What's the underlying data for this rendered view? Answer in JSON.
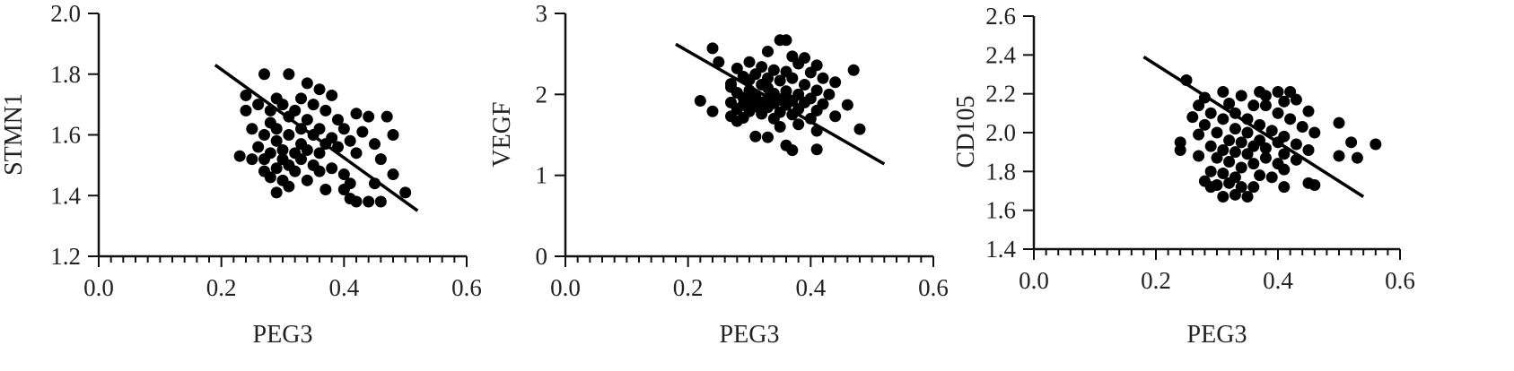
{
  "chart_data": [
    {
      "type": "scatter",
      "xlabel": "PEG3",
      "ylabel": "STMN1",
      "xlim": [
        0.0,
        0.6
      ],
      "ylim": [
        1.2,
        2.0
      ],
      "xticks": [
        0.0,
        0.2,
        0.4,
        0.6
      ],
      "xtick_labels": [
        "0.0",
        "0.2",
        "0.4",
        "0.6"
      ],
      "yticks": [
        1.2,
        1.4,
        1.6,
        1.8,
        2.0
      ],
      "ytick_labels": [
        "1.2",
        "1.4",
        "1.6",
        "1.8",
        "2.0"
      ],
      "grid": false,
      "regression_line": {
        "x": [
          0.19,
          0.52
        ],
        "y": [
          1.83,
          1.35
        ]
      },
      "points": [
        [
          0.27,
          1.8
        ],
        [
          0.31,
          1.8
        ],
        [
          0.34,
          1.77
        ],
        [
          0.36,
          1.75
        ],
        [
          0.38,
          1.73
        ],
        [
          0.24,
          1.73
        ],
        [
          0.29,
          1.72
        ],
        [
          0.33,
          1.72
        ],
        [
          0.26,
          1.7
        ],
        [
          0.3,
          1.7
        ],
        [
          0.35,
          1.7
        ],
        [
          0.24,
          1.68
        ],
        [
          0.28,
          1.68
        ],
        [
          0.32,
          1.68
        ],
        [
          0.37,
          1.68
        ],
        [
          0.42,
          1.67
        ],
        [
          0.44,
          1.66
        ],
        [
          0.47,
          1.66
        ],
        [
          0.31,
          1.66
        ],
        [
          0.34,
          1.65
        ],
        [
          0.39,
          1.65
        ],
        [
          0.28,
          1.64
        ],
        [
          0.25,
          1.62
        ],
        [
          0.29,
          1.62
        ],
        [
          0.33,
          1.62
        ],
        [
          0.36,
          1.62
        ],
        [
          0.4,
          1.62
        ],
        [
          0.43,
          1.61
        ],
        [
          0.48,
          1.6
        ],
        [
          0.27,
          1.6
        ],
        [
          0.31,
          1.6
        ],
        [
          0.35,
          1.6
        ],
        [
          0.38,
          1.59
        ],
        [
          0.41,
          1.58
        ],
        [
          0.29,
          1.58
        ],
        [
          0.33,
          1.57
        ],
        [
          0.37,
          1.57
        ],
        [
          0.45,
          1.57
        ],
        [
          0.26,
          1.56
        ],
        [
          0.39,
          1.56
        ],
        [
          0.3,
          1.55
        ],
        [
          0.34,
          1.55
        ],
        [
          0.28,
          1.54
        ],
        [
          0.32,
          1.54
        ],
        [
          0.36,
          1.54
        ],
        [
          0.42,
          1.54
        ],
        [
          0.23,
          1.53
        ],
        [
          0.25,
          1.52
        ],
        [
          0.27,
          1.52
        ],
        [
          0.3,
          1.52
        ],
        [
          0.33,
          1.52
        ],
        [
          0.46,
          1.52
        ],
        [
          0.31,
          1.5
        ],
        [
          0.35,
          1.5
        ],
        [
          0.38,
          1.49
        ],
        [
          0.29,
          1.49
        ],
        [
          0.27,
          1.48
        ],
        [
          0.32,
          1.48
        ],
        [
          0.36,
          1.48
        ],
        [
          0.4,
          1.47
        ],
        [
          0.28,
          1.46
        ],
        [
          0.48,
          1.47
        ],
        [
          0.3,
          1.45
        ],
        [
          0.34,
          1.45
        ],
        [
          0.41,
          1.44
        ],
        [
          0.45,
          1.44
        ],
        [
          0.31,
          1.43
        ],
        [
          0.37,
          1.42
        ],
        [
          0.4,
          1.42
        ],
        [
          0.29,
          1.41
        ],
        [
          0.5,
          1.41
        ],
        [
          0.41,
          1.39
        ],
        [
          0.42,
          1.38
        ],
        [
          0.44,
          1.38
        ],
        [
          0.46,
          1.38
        ]
      ]
    },
    {
      "type": "scatter",
      "xlabel": "PEG3",
      "ylabel": "VEGF",
      "xlim": [
        0.0,
        0.6
      ],
      "ylim": [
        0,
        3
      ],
      "xticks": [
        0.0,
        0.2,
        0.4,
        0.6
      ],
      "xtick_labels": [
        "0.0",
        "0.2",
        "0.4",
        "0.6"
      ],
      "yticks": [
        0,
        1,
        2,
        3
      ],
      "ytick_labels": [
        "0",
        "1",
        "2",
        "3"
      ],
      "grid": false,
      "regression_line": {
        "x": [
          0.18,
          0.52
        ],
        "y": [
          2.62,
          1.14
        ]
      },
      "points": [
        [
          0.35,
          2.67
        ],
        [
          0.36,
          2.67
        ],
        [
          0.24,
          2.57
        ],
        [
          0.33,
          2.53
        ],
        [
          0.37,
          2.47
        ],
        [
          0.39,
          2.45
        ],
        [
          0.25,
          2.4
        ],
        [
          0.3,
          2.4
        ],
        [
          0.38,
          2.38
        ],
        [
          0.41,
          2.36
        ],
        [
          0.32,
          2.34
        ],
        [
          0.28,
          2.32
        ],
        [
          0.34,
          2.3
        ],
        [
          0.47,
          2.3
        ],
        [
          0.36,
          2.28
        ],
        [
          0.4,
          2.27
        ],
        [
          0.31,
          2.25
        ],
        [
          0.29,
          2.22
        ],
        [
          0.33,
          2.2
        ],
        [
          0.37,
          2.2
        ],
        [
          0.42,
          2.2
        ],
        [
          0.3,
          2.18
        ],
        [
          0.35,
          2.17
        ],
        [
          0.44,
          2.15
        ],
        [
          0.27,
          2.13
        ],
        [
          0.32,
          2.12
        ],
        [
          0.39,
          2.12
        ],
        [
          0.33,
          2.08
        ],
        [
          0.3,
          2.05
        ],
        [
          0.36,
          2.04
        ],
        [
          0.41,
          2.05
        ],
        [
          0.28,
          2.02
        ],
        [
          0.34,
          2.01
        ],
        [
          0.38,
          2.0
        ],
        [
          0.43,
          2.0
        ],
        [
          0.31,
          1.98
        ],
        [
          0.36,
          1.97
        ],
        [
          0.29,
          1.96
        ],
        [
          0.33,
          1.95
        ],
        [
          0.4,
          1.95
        ],
        [
          0.35,
          1.94
        ],
        [
          0.22,
          1.92
        ],
        [
          0.3,
          1.92
        ],
        [
          0.37,
          1.92
        ],
        [
          0.27,
          1.9
        ],
        [
          0.32,
          1.9
        ],
        [
          0.34,
          1.89
        ],
        [
          0.39,
          1.9
        ],
        [
          0.42,
          1.88
        ],
        [
          0.29,
          1.87
        ],
        [
          0.36,
          1.87
        ],
        [
          0.46,
          1.87
        ],
        [
          0.31,
          1.85
        ],
        [
          0.33,
          1.84
        ],
        [
          0.28,
          1.82
        ],
        [
          0.38,
          1.82
        ],
        [
          0.41,
          1.8
        ],
        [
          0.24,
          1.79
        ],
        [
          0.3,
          1.79
        ],
        [
          0.35,
          1.78
        ],
        [
          0.32,
          1.76
        ],
        [
          0.37,
          1.75
        ],
        [
          0.27,
          1.73
        ],
        [
          0.44,
          1.73
        ],
        [
          0.29,
          1.71
        ],
        [
          0.34,
          1.7
        ],
        [
          0.4,
          1.7
        ],
        [
          0.28,
          1.67
        ],
        [
          0.38,
          1.63
        ],
        [
          0.35,
          1.6
        ],
        [
          0.48,
          1.57
        ],
        [
          0.41,
          1.55
        ],
        [
          0.31,
          1.48
        ],
        [
          0.33,
          1.47
        ],
        [
          0.36,
          1.37
        ],
        [
          0.41,
          1.32
        ],
        [
          0.37,
          1.31
        ],
        [
          0.27,
          2.09
        ]
      ]
    },
    {
      "type": "scatter",
      "xlabel": "PEG3",
      "ylabel": "CD105",
      "xlim": [
        0.0,
        0.6
      ],
      "ylim": [
        1.4,
        2.6
      ],
      "xticks": [
        0.0,
        0.2,
        0.4,
        0.6
      ],
      "xtick_labels": [
        "0.0",
        "0.2",
        "0.4",
        "0.6"
      ],
      "yticks": [
        1.4,
        1.6,
        1.8,
        2.0,
        2.2,
        2.4,
        2.6
      ],
      "ytick_labels": [
        "1.4",
        "1.6",
        "1.8",
        "2.0",
        "2.2",
        "2.4",
        "2.6"
      ],
      "grid": false,
      "regression_line": {
        "x": [
          0.18,
          0.54
        ],
        "y": [
          2.39,
          1.67
        ]
      },
      "points": [
        [
          0.25,
          2.27
        ],
        [
          0.31,
          2.21
        ],
        [
          0.37,
          2.21
        ],
        [
          0.4,
          2.21
        ],
        [
          0.42,
          2.21
        ],
        [
          0.28,
          2.18
        ],
        [
          0.34,
          2.19
        ],
        [
          0.38,
          2.19
        ],
        [
          0.43,
          2.17
        ],
        [
          0.27,
          2.14
        ],
        [
          0.32,
          2.15
        ],
        [
          0.36,
          2.14
        ],
        [
          0.45,
          2.11
        ],
        [
          0.29,
          2.1
        ],
        [
          0.33,
          2.1
        ],
        [
          0.4,
          2.1
        ],
        [
          0.26,
          2.08
        ],
        [
          0.31,
          2.07
        ],
        [
          0.35,
          2.07
        ],
        [
          0.42,
          2.07
        ],
        [
          0.5,
          2.05
        ],
        [
          0.28,
          2.04
        ],
        [
          0.37,
          2.04
        ],
        [
          0.44,
          2.03
        ],
        [
          0.33,
          2.02
        ],
        [
          0.39,
          2.01
        ],
        [
          0.3,
          2.0
        ],
        [
          0.35,
          2.0
        ],
        [
          0.46,
          2.0
        ],
        [
          0.27,
          1.99
        ],
        [
          0.41,
          1.98
        ],
        [
          0.32,
          1.96
        ],
        [
          0.37,
          1.96
        ],
        [
          0.24,
          1.95
        ],
        [
          0.34,
          1.95
        ],
        [
          0.4,
          1.95
        ],
        [
          0.43,
          1.94
        ],
        [
          0.52,
          1.95
        ],
        [
          0.56,
          1.94
        ],
        [
          0.29,
          1.93
        ],
        [
          0.36,
          1.93
        ],
        [
          0.38,
          1.92
        ],
        [
          0.31,
          1.91
        ],
        [
          0.24,
          1.91
        ],
        [
          0.45,
          1.91
        ],
        [
          0.33,
          1.9
        ],
        [
          0.35,
          1.89
        ],
        [
          0.41,
          1.89
        ],
        [
          0.27,
          1.88
        ],
        [
          0.5,
          1.88
        ],
        [
          0.53,
          1.87
        ],
        [
          0.3,
          1.87
        ],
        [
          0.38,
          1.87
        ],
        [
          0.43,
          1.86
        ],
        [
          0.32,
          1.85
        ],
        [
          0.36,
          1.84
        ],
        [
          0.4,
          1.84
        ],
        [
          0.34,
          1.82
        ],
        [
          0.41,
          1.81
        ],
        [
          0.29,
          1.8
        ],
        [
          0.31,
          1.79
        ],
        [
          0.37,
          1.78
        ],
        [
          0.33,
          1.77
        ],
        [
          0.39,
          1.77
        ],
        [
          0.28,
          1.75
        ],
        [
          0.32,
          1.74
        ],
        [
          0.45,
          1.74
        ],
        [
          0.46,
          1.73
        ],
        [
          0.3,
          1.73
        ],
        [
          0.34,
          1.72
        ],
        [
          0.36,
          1.72
        ],
        [
          0.41,
          1.72
        ],
        [
          0.29,
          1.72
        ],
        [
          0.33,
          1.68
        ],
        [
          0.31,
          1.67
        ],
        [
          0.35,
          1.67
        ],
        [
          0.38,
          2.14
        ],
        [
          0.41,
          2.16
        ]
      ]
    }
  ]
}
